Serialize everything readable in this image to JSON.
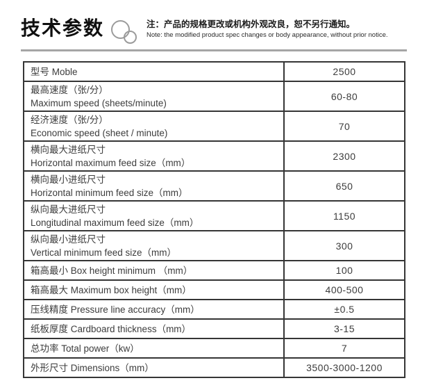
{
  "header": {
    "title": "技术参数",
    "note_zh": "注：产品的规格更改或机构外观改良，恕不另行通知。",
    "note_en": "Note: the modified product spec changes or body appearance, without prior notice."
  },
  "colors": {
    "table_border": "#353535",
    "text": "#3c3c3c",
    "divider": "#a5a5a5",
    "logo_circles": "#9b9b9b"
  },
  "icons": {
    "logo": "overlapping-circles-icon"
  },
  "table": {
    "rows": [
      {
        "line1": "型号 Moble",
        "line2": "",
        "value": "2500"
      },
      {
        "line1": "最高速度（张/分）",
        "line2": "Maximum speed (sheets/minute)",
        "value": "60-80"
      },
      {
        "line1": "经济速度（张/分）",
        "line2": "Economic speed (sheet / minute)",
        "value": "70"
      },
      {
        "line1": "横向最大进纸尺寸",
        "line2": "Horizontal maximum feed size（mm）",
        "value": "2300"
      },
      {
        "line1": "横向最小进纸尺寸",
        "line2": "Horizontal minimum feed size（mm）",
        "value": "650"
      },
      {
        "line1": "纵向最大进纸尺寸",
        "line2": "Longitudinal maximum feed size（mm）",
        "value": "1150"
      },
      {
        "line1": "纵向最小进纸尺寸",
        "line2": "Vertical minimum feed size（mm）",
        "value": "300"
      },
      {
        "line1": "箱高最小 Box height minimum （mm）",
        "line2": "",
        "value": "100"
      },
      {
        "line1": "箱高最大 Maximum box height（mm）",
        "line2": "",
        "value": "400-500"
      },
      {
        "line1": "压线精度 Pressure line accuracy（mm）",
        "line2": "",
        "value": "±0.5"
      },
      {
        "line1": "纸板厚度 Cardboard thickness（mm）",
        "line2": "",
        "value": "3-15"
      },
      {
        "line1": "总功率 Total power（kw）",
        "line2": "",
        "value": "7"
      },
      {
        "line1": "外形尺寸 Dimensions（mm）",
        "line2": "",
        "value": "3500-3000-1200"
      }
    ]
  }
}
